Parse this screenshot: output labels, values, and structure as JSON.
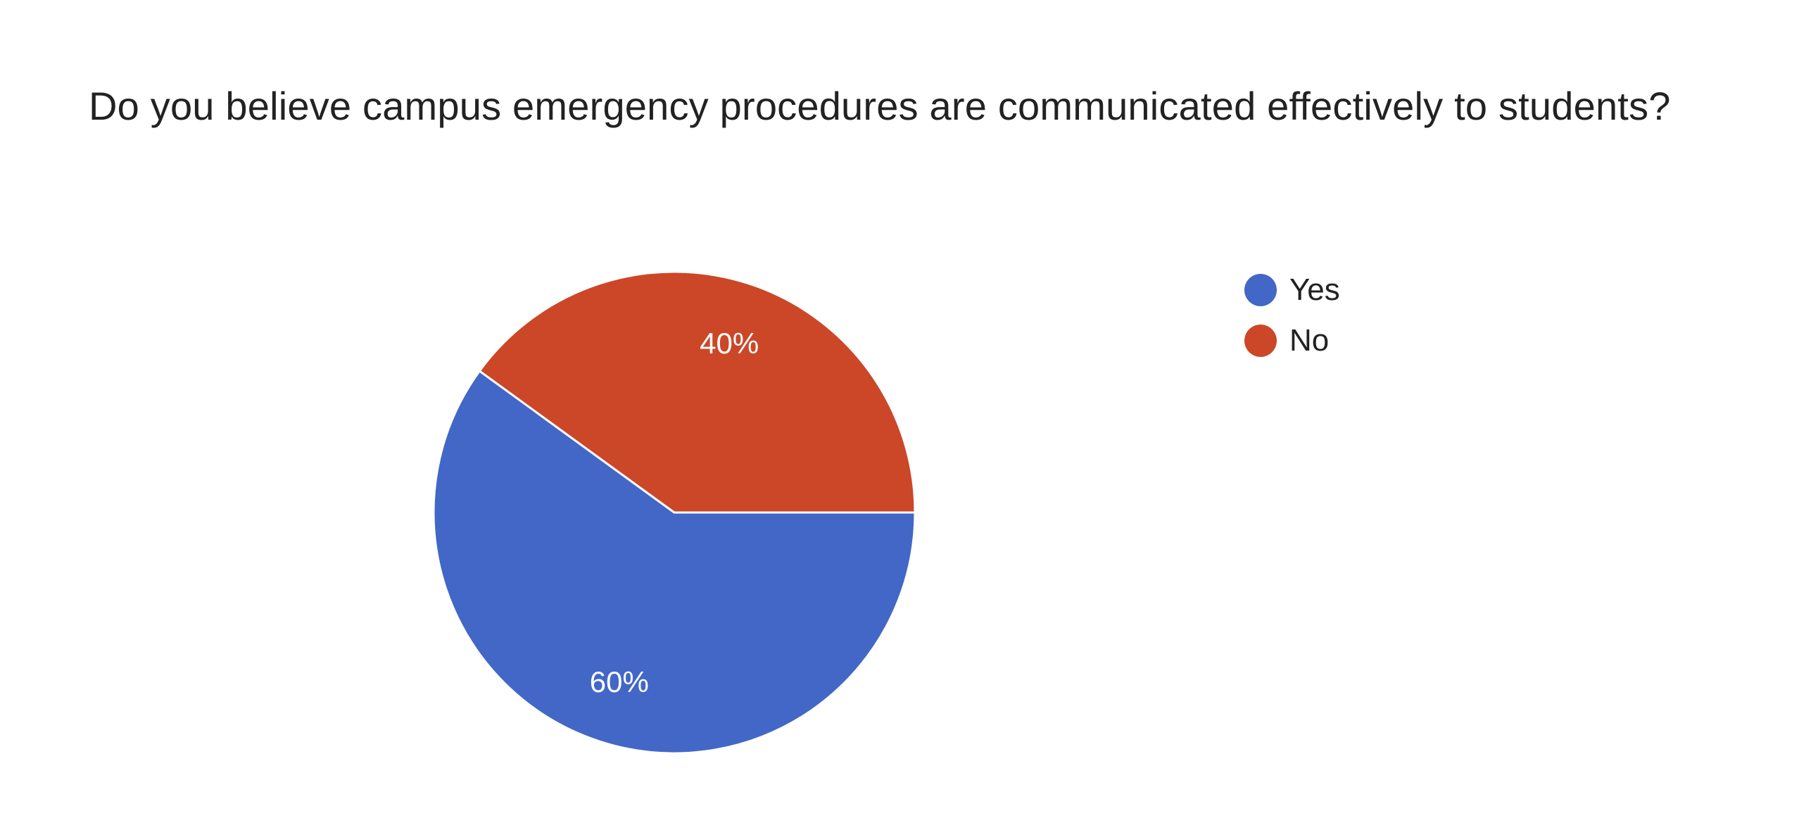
{
  "chart_data": {
    "type": "pie",
    "title": "Do you believe campus emergency procedures are communicated effectively to students?",
    "slices": [
      {
        "label": "Yes",
        "value": 60,
        "display": "60%",
        "color": "#4267c7"
      },
      {
        "label": "No",
        "value": 40,
        "display": "40%",
        "color": "#cb4728"
      }
    ],
    "legend_position": "right"
  }
}
